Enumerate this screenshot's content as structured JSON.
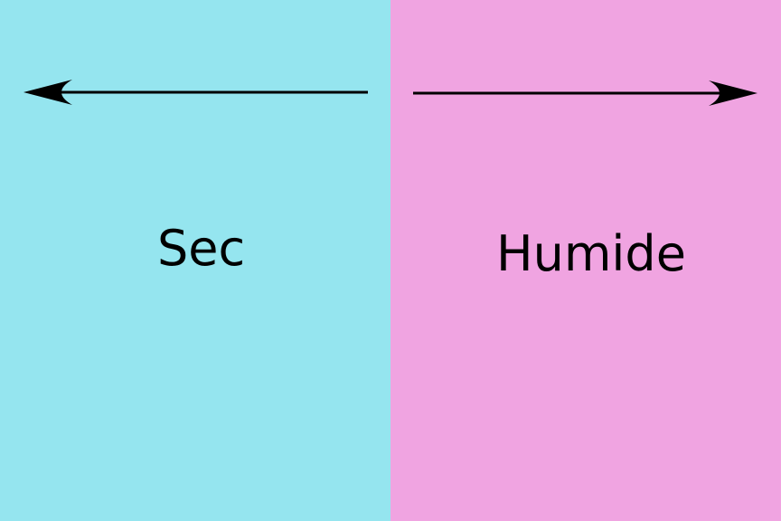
{
  "panels": {
    "left": {
      "label": "Sec",
      "color": "#95e5ef",
      "arrow_direction": "left"
    },
    "right": {
      "label": "Humide",
      "color": "#f0a4e1",
      "arrow_direction": "right"
    }
  },
  "arrow_color": "#000000"
}
